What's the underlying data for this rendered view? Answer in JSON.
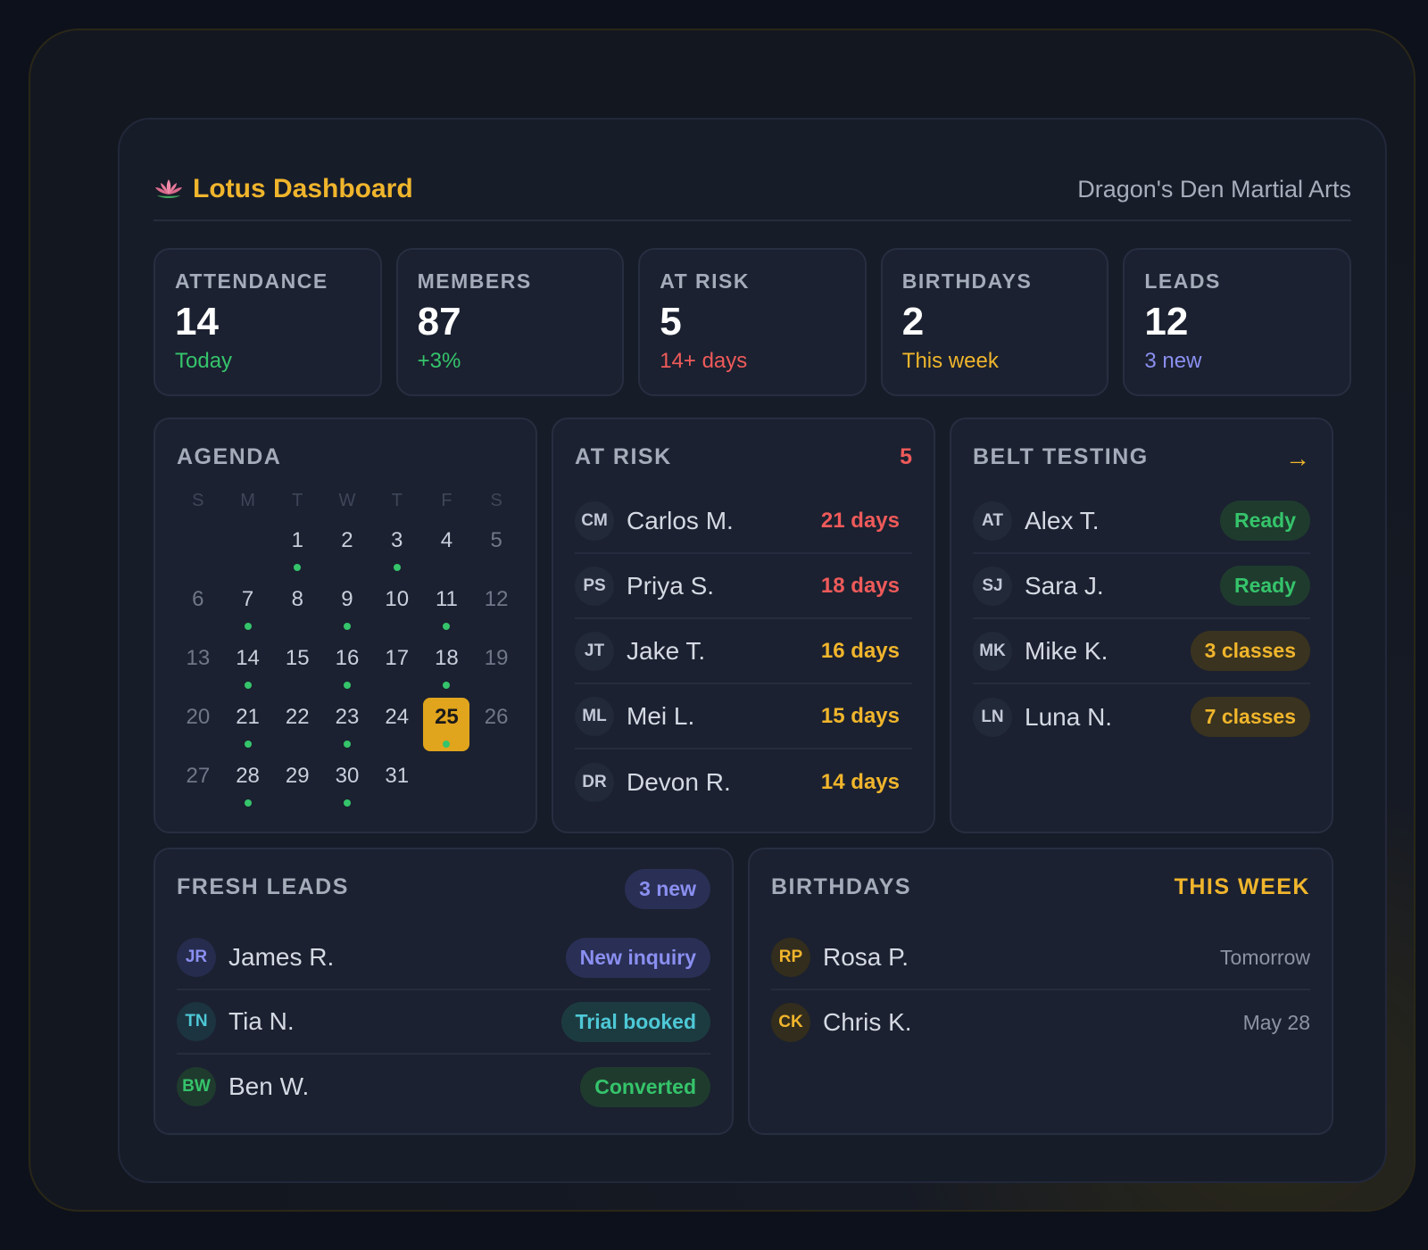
{
  "header": {
    "title": "Lotus Dashboard",
    "org": "Dragon's Den Martial Arts",
    "icon": "lotus-icon"
  },
  "stats": [
    {
      "label": "ATTENDANCE",
      "value": "14",
      "sub": "Today",
      "tone": "green"
    },
    {
      "label": "MEMBERS",
      "value": "87",
      "sub": "+3%",
      "tone": "green"
    },
    {
      "label": "AT RISK",
      "value": "5",
      "sub": "14+ days",
      "tone": "red"
    },
    {
      "label": "BIRTHDAYS",
      "value": "2",
      "sub": "This week",
      "tone": "yellow"
    },
    {
      "label": "LEADS",
      "value": "12",
      "sub": "3 new",
      "tone": "indigo"
    }
  ],
  "agenda": {
    "title": "AGENDA",
    "weekdays": [
      "S",
      "M",
      "T",
      "W",
      "T",
      "F",
      "S"
    ],
    "weeks": [
      [
        null,
        null,
        "1",
        "2",
        "3",
        "4",
        "5"
      ],
      [
        "6",
        "7",
        "8",
        "9",
        "10",
        "11",
        "12"
      ],
      [
        "13",
        "14",
        "15",
        "16",
        "17",
        "18",
        "19"
      ],
      [
        "20",
        "21",
        "22",
        "23",
        "24",
        "25",
        "26"
      ],
      [
        "27",
        "28",
        "29",
        "30",
        "31",
        null,
        null
      ]
    ],
    "event_days": [
      "1",
      "3",
      "7",
      "9",
      "11",
      "14",
      "16",
      "18",
      "21",
      "23",
      "25",
      "28",
      "30"
    ],
    "today": "25"
  },
  "at_risk": {
    "title": "AT RISK",
    "count": "5",
    "rows": [
      {
        "initials": "CM",
        "name": "Carlos M.",
        "days": "21 days",
        "tone": "red"
      },
      {
        "initials": "PS",
        "name": "Priya S.",
        "days": "18 days",
        "tone": "red"
      },
      {
        "initials": "JT",
        "name": "Jake T.",
        "days": "16 days",
        "tone": "yellow"
      },
      {
        "initials": "ML",
        "name": "Mei L.",
        "days": "15 days",
        "tone": "yellow"
      },
      {
        "initials": "DR",
        "name": "Devon R.",
        "days": "14 days",
        "tone": "yellow"
      }
    ]
  },
  "belt_testing": {
    "title": "BELT TESTING",
    "arrow": "→",
    "rows": [
      {
        "initials": "AT",
        "name": "Alex T.",
        "status": "Ready",
        "tone": "green"
      },
      {
        "initials": "SJ",
        "name": "Sara J.",
        "status": "Ready",
        "tone": "green"
      },
      {
        "initials": "MK",
        "name": "Mike K.",
        "status": "3 classes",
        "tone": "amber"
      },
      {
        "initials": "LN",
        "name": "Luna N.",
        "status": "7 classes",
        "tone": "amber"
      }
    ]
  },
  "fresh_leads": {
    "title": "FRESH LEADS",
    "badge": "3 new",
    "rows": [
      {
        "initials": "JR",
        "name": "James R.",
        "status": "New inquiry",
        "tone": "indigo"
      },
      {
        "initials": "TN",
        "name": "Tia N.",
        "status": "Trial booked",
        "tone": "cyan"
      },
      {
        "initials": "BW",
        "name": "Ben W.",
        "status": "Converted",
        "tone": "green"
      }
    ]
  },
  "birthdays": {
    "title": "BIRTHDAYS",
    "badge": "THIS WEEK",
    "rows": [
      {
        "initials": "RP",
        "name": "Rosa P.",
        "when": "Tomorrow"
      },
      {
        "initials": "CK",
        "name": "Chris K.",
        "when": "May 28"
      }
    ]
  },
  "colors": {
    "accent": "#f0b52c",
    "green": "#35c46b",
    "red": "#ef5a5a",
    "indigo": "#8a8ff0",
    "cyan": "#4ec8d6"
  }
}
